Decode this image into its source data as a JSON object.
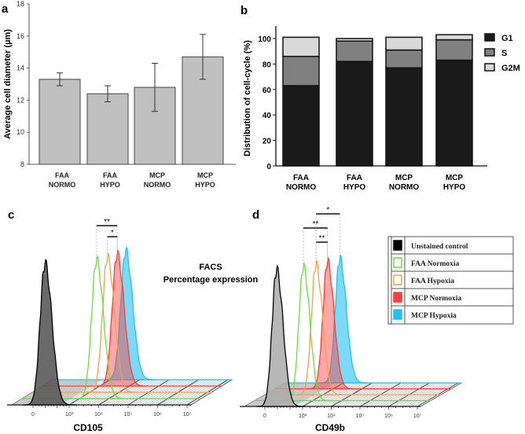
{
  "chart_data": [
    {
      "panel": "a",
      "type": "bar",
      "ylabel": "Average cell diameter (µm)",
      "ylim": [
        8,
        18
      ],
      "yticks": [
        "8",
        "10",
        "12",
        "14",
        "16",
        "18"
      ],
      "categories": [
        [
          "FAA",
          "NORMO"
        ],
        [
          "FAA",
          "HYPO"
        ],
        [
          "MCP",
          "NORMO"
        ],
        [
          "MCP",
          "HYPO"
        ]
      ],
      "values": [
        13.3,
        12.4,
        12.8,
        14.7
      ],
      "errors": [
        0.4,
        0.5,
        1.5,
        1.4
      ],
      "bar_color": "#c0c0c0"
    },
    {
      "panel": "b",
      "type": "bar",
      "stacked": true,
      "ylabel": "Distribution of cell-cycle (%)",
      "ylim": [
        0,
        110
      ],
      "yticks": [
        "0",
        "20",
        "40",
        "60",
        "80",
        "100"
      ],
      "categories": [
        [
          "FAA",
          "NORMO"
        ],
        [
          "FAA",
          "HYPO"
        ],
        [
          "MCP",
          "NORMO"
        ],
        [
          "MCP",
          "HYPO"
        ]
      ],
      "series": [
        {
          "name": "G1",
          "values": [
            63,
            82,
            77,
            83
          ],
          "color": "#1a1a1a"
        },
        {
          "name": "S",
          "values": [
            23,
            16,
            14,
            16
          ],
          "color": "#808080"
        },
        {
          "name": "G2M",
          "values": [
            15,
            2,
            10,
            4
          ],
          "color": "#d9d9d9"
        }
      ],
      "legend": "right"
    },
    {
      "panel": "c",
      "type": "area",
      "xlabel": "CD105",
      "xticks": [
        "0",
        "10³",
        "10⁴",
        "10⁵",
        "10⁶",
        "10⁷"
      ],
      "peaks_log10": {
        "Unstained control": 1.0,
        "FAA Normoxia": 3.93,
        "FAA Hypoxia": 4.3,
        "MCP Normoxia": 4.63,
        "MCP Hypoxia": 4.92
      },
      "significance": [
        {
          "from": "FAA Normoxia",
          "to": "MCP Normoxia",
          "label": "**"
        },
        {
          "from": "FAA Hypoxia",
          "to": "MCP Normoxia",
          "label": "*"
        }
      ]
    },
    {
      "panel": "d",
      "type": "area",
      "xlabel": "CD49b",
      "xticks": [
        "0",
        "10³",
        "10⁴",
        "10⁵",
        "10⁶",
        "10⁷"
      ],
      "peaks_log10": {
        "Unstained control": 0.94,
        "FAA Normoxia": 3.03,
        "FAA Hypoxia": 3.47,
        "MCP Normoxia": 3.87,
        "MCP Hypoxia": 4.3
      },
      "significance": [
        {
          "from": "FAA Normoxia",
          "to": "MCP Normoxia",
          "label": "**"
        },
        {
          "from": "FAA Hypoxia",
          "to": "MCP Normoxia",
          "label": "**"
        },
        {
          "from": "FAA Hypoxia",
          "to": "MCP Hypoxia",
          "label": "*"
        }
      ]
    }
  ],
  "facs_title": [
    "FACS",
    "Percentage expression"
  ],
  "legend": [
    {
      "label": "Unstained control",
      "color": "#000000",
      "filled": true
    },
    {
      "label": "FAA Normoxia",
      "color": "#66e23a",
      "filled": false
    },
    {
      "label": "FAA Hypoxia",
      "color": "#f7a043",
      "filled": false
    },
    {
      "label": "MCP Normoxia",
      "color": "#ff3b3b",
      "filled": true
    },
    {
      "label": "MCP Hypoxia",
      "color": "#1ec3f2",
      "filled": true
    }
  ],
  "panel_labels": [
    "a",
    "b",
    "c",
    "d"
  ]
}
